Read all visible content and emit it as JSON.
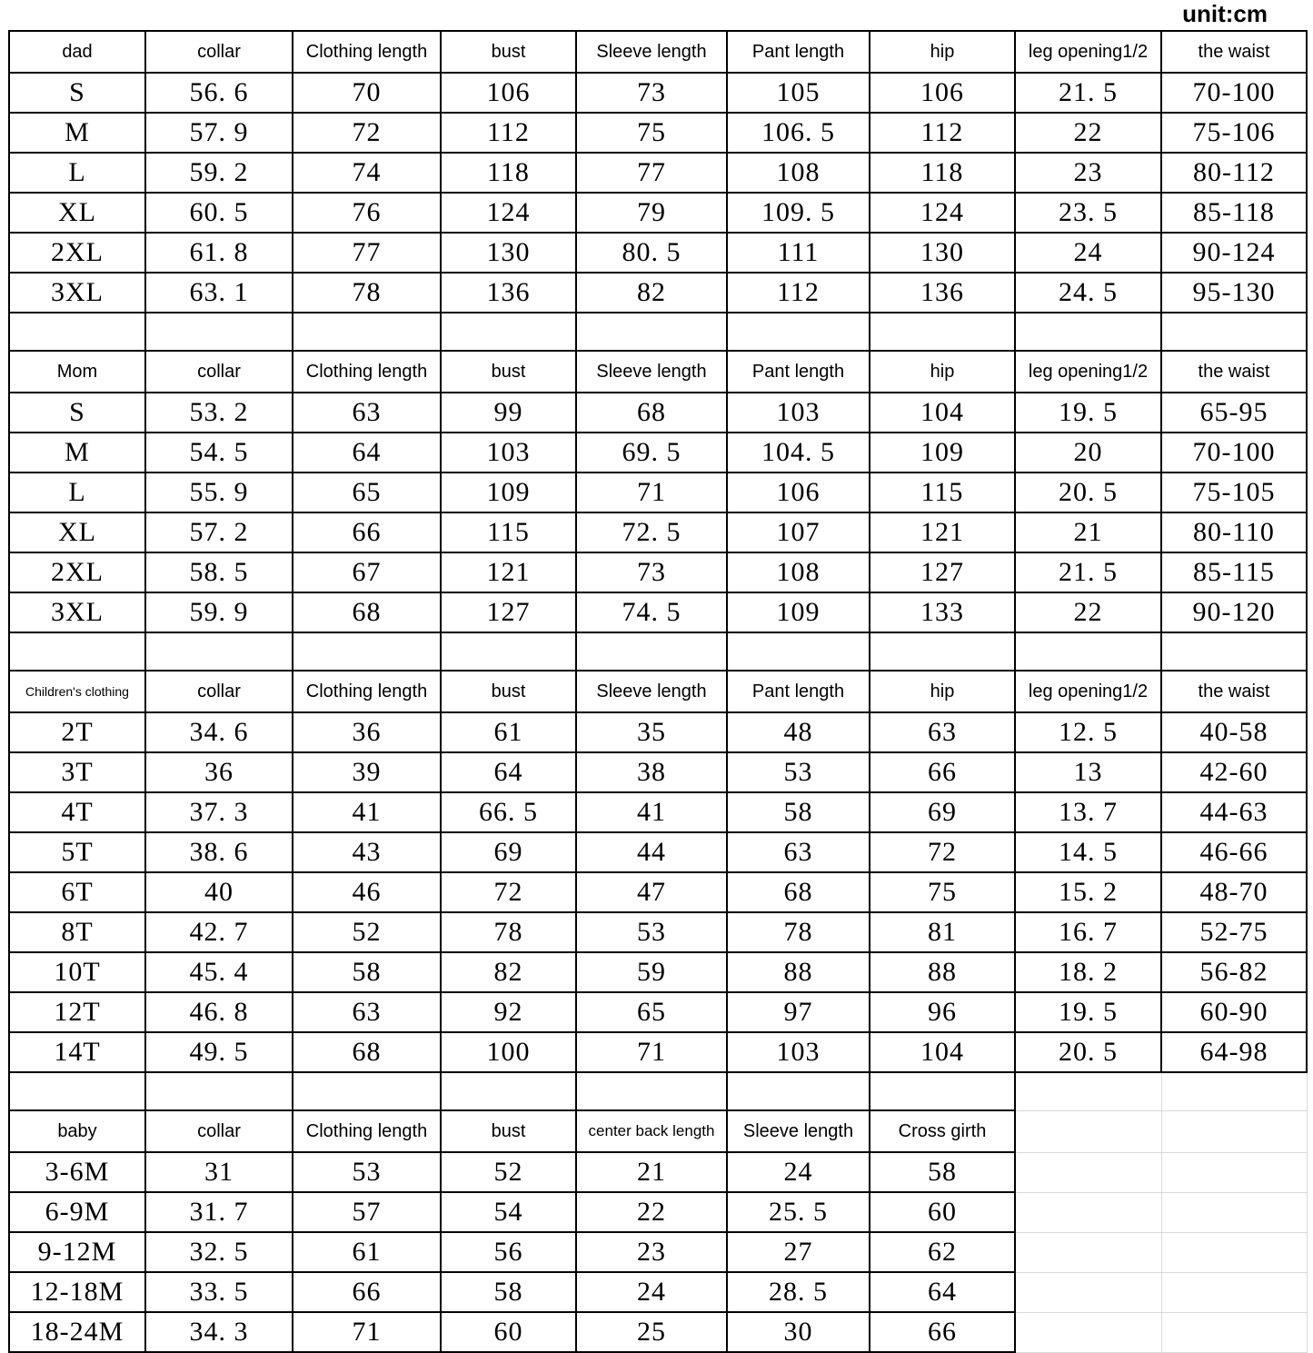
{
  "unit_label": "unit:cm",
  "colors": {
    "border": "#000000",
    "faint_grid": "#d9d9d9",
    "text": "#000000",
    "background": "#ffffff"
  },
  "table": {
    "total_columns": 9,
    "sections": [
      {
        "id": "dad",
        "headers": [
          "dad",
          "collar",
          "Clothing length",
          "bust",
          "Sleeve length",
          "Pant length",
          "hip",
          "leg opening1/2",
          "the waist"
        ],
        "rows": [
          [
            "S",
            "56. 6",
            "70",
            "106",
            "73",
            "105",
            "106",
            "21. 5",
            "70-100"
          ],
          [
            "M",
            "57. 9",
            "72",
            "112",
            "75",
            "106. 5",
            "112",
            "22",
            "75-106"
          ],
          [
            "L",
            "59. 2",
            "74",
            "118",
            "77",
            "108",
            "118",
            "23",
            "80-112"
          ],
          [
            "XL",
            "60. 5",
            "76",
            "124",
            "79",
            "109. 5",
            "124",
            "23. 5",
            "85-118"
          ],
          [
            "2XL",
            "61. 8",
            "77",
            "130",
            "80. 5",
            "111",
            "130",
            "24",
            "90-124"
          ],
          [
            "3XL",
            "63. 1",
            "78",
            "136",
            "82",
            "112",
            "136",
            "24. 5",
            "95-130"
          ]
        ],
        "gap_after": true,
        "gap_ghost_cols": 0
      },
      {
        "id": "mom",
        "headers": [
          "Mom",
          "collar",
          "Clothing length",
          "bust",
          "Sleeve length",
          "Pant length",
          "hip",
          "leg opening1/2",
          "the waist"
        ],
        "rows": [
          [
            "S",
            "53. 2",
            "63",
            "99",
            "68",
            "103",
            "104",
            "19. 5",
            "65-95"
          ],
          [
            "M",
            "54. 5",
            "64",
            "103",
            "69. 5",
            "104. 5",
            "109",
            "20",
            "70-100"
          ],
          [
            "L",
            "55. 9",
            "65",
            "109",
            "71",
            "106",
            "115",
            "20. 5",
            "75-105"
          ],
          [
            "XL",
            "57. 2",
            "66",
            "115",
            "72. 5",
            "107",
            "121",
            "21",
            "80-110"
          ],
          [
            "2XL",
            "58. 5",
            "67",
            "121",
            "73",
            "108",
            "127",
            "21. 5",
            "85-115"
          ],
          [
            "3XL",
            "59. 9",
            "68",
            "127",
            "74. 5",
            "109",
            "133",
            "22",
            "90-120"
          ]
        ],
        "gap_after": true,
        "gap_ghost_cols": 0
      },
      {
        "id": "children",
        "headers": [
          "Children's clothing",
          "collar",
          "Clothing length",
          "bust",
          "Sleeve length",
          "Pant length",
          "hip",
          "leg opening1/2",
          "the waist"
        ],
        "small_headers": [
          0
        ],
        "rows": [
          [
            "2T",
            "34. 6",
            "36",
            "61",
            "35",
            "48",
            "63",
            "12. 5",
            "40-58"
          ],
          [
            "3T",
            "36",
            "39",
            "64",
            "38",
            "53",
            "66",
            "13",
            "42-60"
          ],
          [
            "4T",
            "37. 3",
            "41",
            "66. 5",
            "41",
            "58",
            "69",
            "13. 7",
            "44-63"
          ],
          [
            "5T",
            "38. 6",
            "43",
            "69",
            "44",
            "63",
            "72",
            "14. 5",
            "46-66"
          ],
          [
            "6T",
            "40",
            "46",
            "72",
            "47",
            "68",
            "75",
            "15. 2",
            "48-70"
          ],
          [
            "8T",
            "42. 7",
            "52",
            "78",
            "53",
            "78",
            "81",
            "16. 7",
            "52-75"
          ],
          [
            "10T",
            "45. 4",
            "58",
            "82",
            "59",
            "88",
            "88",
            "18. 2",
            "56-82"
          ],
          [
            "12T",
            "46. 8",
            "63",
            "92",
            "65",
            "97",
            "96",
            "19. 5",
            "60-90"
          ],
          [
            "14T",
            "49. 5",
            "68",
            "100",
            "71",
            "103",
            "104",
            "20. 5",
            "64-98"
          ]
        ],
        "gap_after": true,
        "gap_ghost_cols": 2
      },
      {
        "id": "baby",
        "headers": [
          "baby",
          "collar",
          "Clothing length",
          "bust",
          "center back length",
          "Sleeve length",
          "Cross girth"
        ],
        "tight_headers": [
          4
        ],
        "rows": [
          [
            "3-6M",
            "31",
            "53",
            "52",
            "21",
            "24",
            "58"
          ],
          [
            "6-9M",
            "31. 7",
            "57",
            "54",
            "22",
            "25. 5",
            "60"
          ],
          [
            "9-12M",
            "32. 5",
            "61",
            "56",
            "23",
            "27",
            "62"
          ],
          [
            "12-18M",
            "33. 5",
            "66",
            "58",
            "24",
            "28. 5",
            "64"
          ],
          [
            "18-24M",
            "34. 3",
            "71",
            "60",
            "25",
            "30",
            "66"
          ]
        ],
        "gap_after": false,
        "gap_ghost_cols": 0
      }
    ]
  }
}
